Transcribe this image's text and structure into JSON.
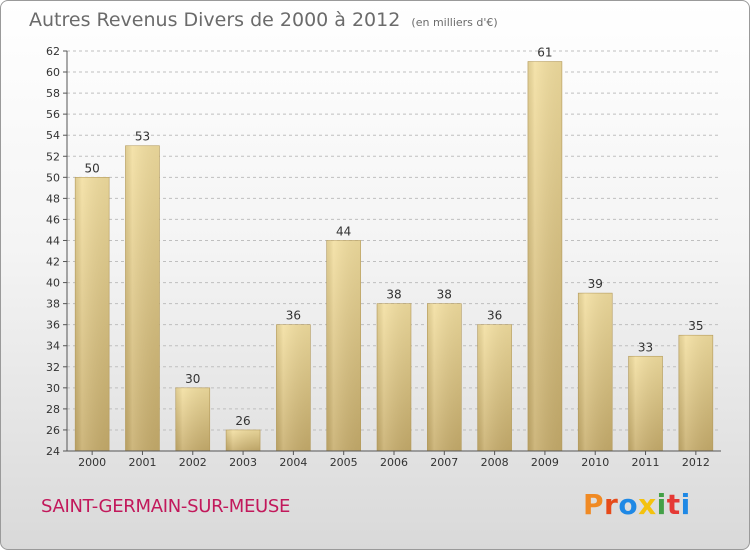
{
  "title": "Autres Revenus Divers de 2000 à 2012",
  "unit_note": "(en milliers d'€)",
  "commune": "SAINT-GERMAIN-SUR-MEUSE",
  "brand": {
    "text": "Proxiti",
    "colors": [
      "#f08a24",
      "#e64a19",
      "#1e88e5",
      "#f4c20d",
      "#43a047",
      "#e53935",
      "#1e88e5"
    ]
  },
  "colors": {
    "bar_light": "#f3dfa0",
    "bar_dark": "#c7ad6c",
    "grid": "#bfbfbf",
    "axis_text": "#333333",
    "commune": "#c2185b"
  },
  "chart_data": {
    "type": "bar",
    "title": "Autres Revenus Divers de 2000 à 2012",
    "unit": "(en milliers d'€)",
    "categories": [
      "2000",
      "2001",
      "2002",
      "2003",
      "2004",
      "2005",
      "2006",
      "2007",
      "2008",
      "2009",
      "2010",
      "2011",
      "2012"
    ],
    "values": [
      50,
      53,
      30,
      26,
      36,
      44,
      38,
      38,
      36,
      61,
      39,
      33,
      35
    ],
    "ylim": [
      24,
      62
    ],
    "yticks": [
      24,
      26,
      28,
      30,
      32,
      34,
      36,
      38,
      40,
      42,
      44,
      46,
      48,
      50,
      52,
      54,
      56,
      58,
      60,
      62
    ],
    "grid": "horizontal dashed",
    "legend": "none"
  }
}
